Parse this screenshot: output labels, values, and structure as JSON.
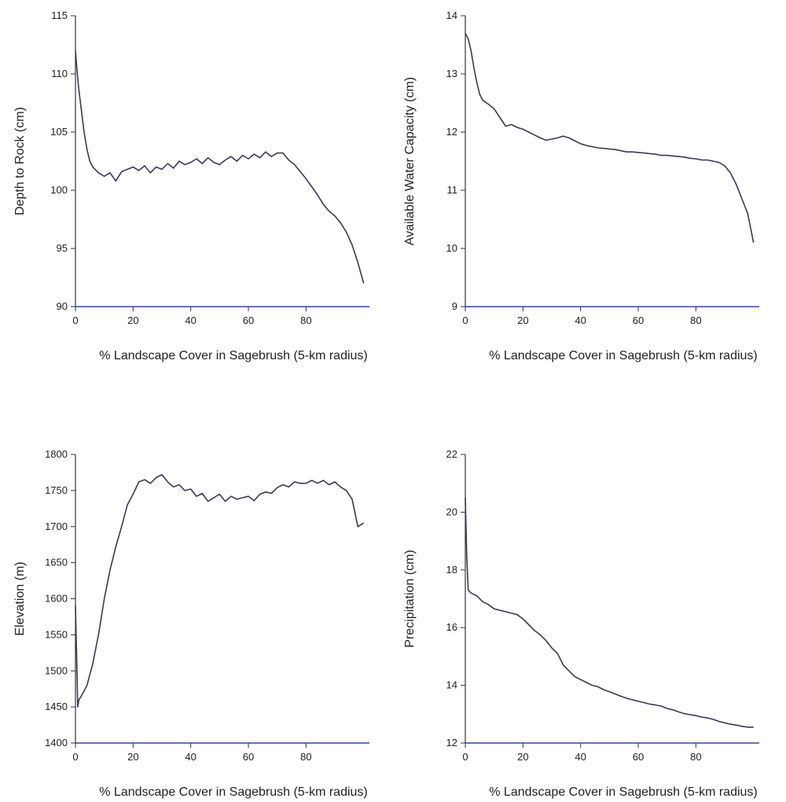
{
  "figure": {
    "panels_count": 4
  },
  "chart_data": [
    {
      "type": "line",
      "xlabel": "% Landscape Cover in Sagebrush (5-km radius)",
      "ylabel": "Depth to Rock (cm)",
      "xlim": [
        0,
        100
      ],
      "ylim": [
        90,
        115
      ],
      "xticks": [
        0,
        20,
        40,
        60,
        80
      ],
      "yticks": [
        90,
        95,
        100,
        105,
        110,
        115
      ],
      "grid": false,
      "colors": {
        "line": "#3a3a55",
        "axis": "#3344aa"
      },
      "series": [
        {
          "x": [
            0,
            0.5,
            1,
            2,
            3,
            4,
            5,
            6,
            8,
            10,
            12,
            14,
            16,
            18,
            20,
            22,
            24,
            26,
            28,
            30,
            32,
            34,
            36,
            38,
            40,
            42,
            44,
            46,
            48,
            50,
            52,
            54,
            56,
            58,
            60,
            62,
            64,
            66,
            68,
            70,
            72,
            74,
            76,
            78,
            80,
            82,
            84,
            86,
            88,
            90,
            92,
            94,
            96,
            98,
            100
          ],
          "y": [
            112,
            110.5,
            109,
            107,
            105,
            103.5,
            102.5,
            102,
            101.5,
            101.2,
            101.5,
            100.8,
            101.6,
            101.8,
            102,
            101.7,
            102.1,
            101.5,
            102,
            101.8,
            102.3,
            101.9,
            102.5,
            102.2,
            102.4,
            102.7,
            102.3,
            102.8,
            102.4,
            102.2,
            102.6,
            102.9,
            102.5,
            103,
            102.7,
            103.1,
            102.8,
            103.3,
            102.9,
            103.2,
            103.2,
            102.6,
            102.2,
            101.6,
            101,
            100.3,
            99.6,
            98.8,
            98.2,
            97.8,
            97.2,
            96.4,
            95.3,
            93.8,
            92
          ]
        }
      ]
    },
    {
      "type": "line",
      "xlabel": "% Landscape Cover in Sagebrush (5-km radius)",
      "ylabel": "Available Water Capacity (cm)",
      "xlim": [
        0,
        100
      ],
      "ylim": [
        9,
        14
      ],
      "xticks": [
        0,
        20,
        40,
        60,
        80
      ],
      "yticks": [
        9,
        10,
        11,
        12,
        13,
        14
      ],
      "grid": false,
      "colors": {
        "line": "#3a3a55",
        "axis": "#3344aa"
      },
      "series": [
        {
          "x": [
            0,
            1,
            2,
            3,
            4,
            5,
            6,
            8,
            10,
            12,
            14,
            16,
            18,
            20,
            22,
            24,
            26,
            28,
            30,
            32,
            34,
            36,
            38,
            40,
            42,
            44,
            46,
            48,
            50,
            52,
            54,
            56,
            58,
            60,
            62,
            64,
            66,
            68,
            70,
            72,
            74,
            76,
            78,
            80,
            82,
            84,
            86,
            88,
            90,
            92,
            94,
            96,
            98,
            100
          ],
          "y": [
            13.7,
            13.6,
            13.4,
            13.1,
            12.85,
            12.65,
            12.55,
            12.48,
            12.4,
            12.25,
            12.1,
            12.13,
            12.08,
            12.05,
            12,
            11.95,
            11.9,
            11.86,
            11.88,
            11.9,
            11.93,
            11.9,
            11.85,
            11.8,
            11.77,
            11.75,
            11.73,
            11.72,
            11.71,
            11.7,
            11.68,
            11.66,
            11.66,
            11.65,
            11.64,
            11.63,
            11.62,
            11.6,
            11.6,
            11.59,
            11.58,
            11.57,
            11.55,
            11.54,
            11.52,
            11.52,
            11.5,
            11.48,
            11.42,
            11.3,
            11.1,
            10.85,
            10.6,
            10.1
          ]
        }
      ]
    },
    {
      "type": "line",
      "xlabel": "% Landscape Cover in Sagebrush (5-km radius)",
      "ylabel": "Elevation (m)",
      "xlim": [
        0,
        100
      ],
      "ylim": [
        1400,
        1800
      ],
      "xticks": [
        0,
        20,
        40,
        60,
        80
      ],
      "yticks": [
        1400,
        1450,
        1500,
        1550,
        1600,
        1650,
        1700,
        1750,
        1800
      ],
      "grid": false,
      "colors": {
        "line": "#3a3a55",
        "axis": "#3344aa"
      },
      "series": [
        {
          "x": [
            0,
            0.4,
            0.8,
            1.2,
            2,
            3,
            4,
            6,
            8,
            10,
            12,
            14,
            16,
            18,
            20,
            22,
            24,
            26,
            28,
            30,
            32,
            34,
            36,
            38,
            40,
            42,
            44,
            46,
            48,
            50,
            52,
            54,
            56,
            58,
            60,
            62,
            64,
            66,
            68,
            70,
            72,
            74,
            76,
            78,
            80,
            82,
            84,
            86,
            88,
            90,
            92,
            94,
            96,
            98,
            100
          ],
          "y": [
            1590,
            1520,
            1450,
            1460,
            1465,
            1472,
            1480,
            1510,
            1550,
            1600,
            1640,
            1672,
            1700,
            1730,
            1745,
            1762,
            1765,
            1760,
            1768,
            1772,
            1762,
            1755,
            1758,
            1750,
            1752,
            1742,
            1746,
            1735,
            1740,
            1745,
            1735,
            1742,
            1738,
            1740,
            1742,
            1736,
            1745,
            1748,
            1746,
            1754,
            1758,
            1755,
            1762,
            1760,
            1760,
            1764,
            1760,
            1764,
            1758,
            1762,
            1755,
            1750,
            1738,
            1700,
            1705
          ]
        }
      ]
    },
    {
      "type": "line",
      "xlabel": "% Landscape Cover in Sagebrush (5-km radius)",
      "ylabel": "Precipitation (cm)",
      "xlim": [
        0,
        100
      ],
      "ylim": [
        12,
        22
      ],
      "xticks": [
        0,
        20,
        40,
        60,
        80
      ],
      "yticks": [
        12,
        14,
        16,
        18,
        20,
        22
      ],
      "grid": false,
      "colors": {
        "line": "#3a3a55",
        "axis": "#3344aa"
      },
      "series": [
        {
          "x": [
            0,
            0.5,
            1,
            2,
            4,
            6,
            8,
            10,
            12,
            14,
            16,
            18,
            20,
            22,
            24,
            26,
            28,
            30,
            32,
            34,
            36,
            38,
            40,
            42,
            44,
            46,
            48,
            50,
            52,
            54,
            56,
            58,
            60,
            62,
            64,
            66,
            68,
            70,
            72,
            74,
            76,
            78,
            80,
            82,
            84,
            86,
            88,
            90,
            92,
            94,
            96,
            98,
            100
          ],
          "y": [
            20.5,
            18.5,
            17.3,
            17.2,
            17.1,
            16.9,
            16.8,
            16.65,
            16.6,
            16.55,
            16.5,
            16.45,
            16.3,
            16.1,
            15.9,
            15.75,
            15.55,
            15.3,
            15.1,
            14.7,
            14.5,
            14.3,
            14.2,
            14.1,
            14,
            13.95,
            13.85,
            13.78,
            13.7,
            13.62,
            13.55,
            13.5,
            13.45,
            13.4,
            13.35,
            13.32,
            13.28,
            13.2,
            13.15,
            13.08,
            13.02,
            12.98,
            12.95,
            12.9,
            12.87,
            12.82,
            12.75,
            12.7,
            12.65,
            12.62,
            12.58,
            12.55,
            12.55
          ]
        }
      ]
    }
  ]
}
